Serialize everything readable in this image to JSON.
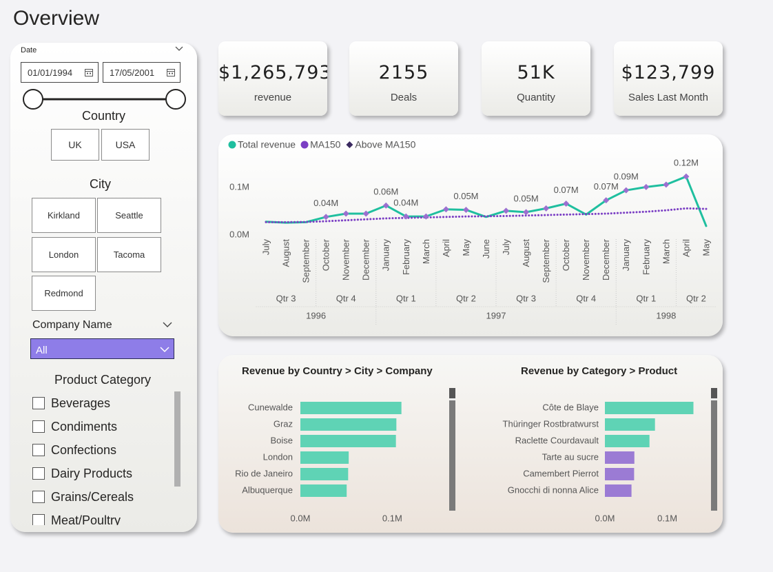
{
  "header": {
    "title": "Overview"
  },
  "filters": {
    "date": {
      "label": "Date",
      "start": "01/01/1994",
      "end": "17/05/2001"
    },
    "country": {
      "title": "Country",
      "options": [
        "UK",
        "USA"
      ]
    },
    "city": {
      "title": "City",
      "options": [
        "Kirkland",
        "Seattle",
        "London",
        "Tacoma",
        "Redmond"
      ]
    },
    "company": {
      "label": "Company Name",
      "value": "All"
    },
    "product_category": {
      "title": "Product Category",
      "options": [
        "Beverages",
        "Condiments",
        "Confections",
        "Dairy Products",
        "Grains/Cereals",
        "Meat/Poultry"
      ]
    }
  },
  "kpis": [
    {
      "value": "$1,265,793",
      "label": "revenue"
    },
    {
      "value": "2155",
      "label": "Deals"
    },
    {
      "value": "51K",
      "label": "Quantity"
    },
    {
      "value": "$123,799",
      "label": "Sales Last Month"
    }
  ],
  "chart_data": [
    {
      "type": "line",
      "categories": [
        "July",
        "August",
        "September",
        "October",
        "November",
        "December",
        "January",
        "February",
        "March",
        "April",
        "May",
        "June",
        "July",
        "August",
        "September",
        "October",
        "November",
        "December",
        "January",
        "February",
        "March",
        "April",
        "May"
      ],
      "quarters": [
        {
          "label": "Qtr 3",
          "months": 3
        },
        {
          "label": "Qtr 4",
          "months": 3
        },
        {
          "label": "Qtr 1",
          "months": 3
        },
        {
          "label": "Qtr 2",
          "months": 3
        },
        {
          "label": "Qtr 3",
          "months": 3
        },
        {
          "label": "Qtr 4",
          "months": 3
        },
        {
          "label": "Qtr 1",
          "months": 3
        },
        {
          "label": "Qtr 2",
          "months": 2
        }
      ],
      "years": [
        {
          "label": "1996",
          "quarters": 2
        },
        {
          "label": "1997",
          "quarters": 4
        },
        {
          "label": "1998",
          "quarters": 2
        }
      ],
      "series": [
        {
          "name": "Total revenue",
          "color": "#1fbf9f",
          "values": [
            28000,
            26000,
            27000,
            38000,
            45000,
            45000,
            62000,
            39000,
            39000,
            54000,
            53000,
            38000,
            51000,
            48000,
            56000,
            66000,
            43000,
            73000,
            94000,
            101000,
            106000,
            123000,
            19000
          ],
          "value_labels": [
            null,
            null,
            null,
            "0.04M",
            null,
            null,
            "0.06M",
            "0.04M",
            null,
            null,
            "0.05M",
            null,
            null,
            "0.05M",
            null,
            "0.07M",
            null,
            "0.07M",
            "0.09M",
            null,
            null,
            "0.12M",
            null
          ]
        },
        {
          "name": "MA150",
          "color": "#7b3fc4",
          "style": "dotted",
          "values": [
            27000,
            27000,
            27500,
            29000,
            31000,
            33000,
            35000,
            36000,
            37000,
            38000,
            39000,
            39500,
            40000,
            41000,
            42000,
            43000,
            44000,
            45000,
            47000,
            49000,
            52000,
            56000,
            55000
          ]
        },
        {
          "name": "Above MA150",
          "color": "#9b70d0",
          "marker": "diamond",
          "values": [
            null,
            null,
            null,
            38000,
            45000,
            45000,
            62000,
            39000,
            39000,
            54000,
            53000,
            null,
            51000,
            48000,
            56000,
            66000,
            null,
            73000,
            94000,
            101000,
            106000,
            123000,
            null
          ]
        }
      ],
      "ylim": [
        0,
        145000
      ],
      "yticks": [
        {
          "value": 0,
          "label": "0.0M"
        },
        {
          "value": 100000,
          "label": "0.1M"
        }
      ],
      "legend": "top-left"
    },
    {
      "type": "bar",
      "orientation": "horizontal",
      "title": "Revenue by Country > City > Company",
      "categories": [
        "Cunewalde",
        "Graz",
        "Boise",
        "London",
        "Rio de Janeiro",
        "Albuquerque"
      ],
      "values": [
        110000,
        104500,
        104000,
        52600,
        52000,
        50400
      ],
      "colors": [
        "#5fd3b5",
        "#5fd3b5",
        "#5fd3b5",
        "#5fd3b5",
        "#5fd3b5",
        "#5fd3b5"
      ],
      "xlim": [
        0,
        150000
      ],
      "xticks": [
        {
          "value": 0,
          "label": "0.0M"
        },
        {
          "value": 100000,
          "label": "0.1M"
        }
      ]
    },
    {
      "type": "bar",
      "orientation": "horizontal",
      "title": "Revenue by Category > Product",
      "categories": [
        "Côte de Blaye",
        "Thüringer Rostbratwurst",
        "Raclette Courdavault",
        "Tarte au sucre",
        "Camembert Pierrot",
        "Gnocchi di nonna Alice"
      ],
      "values": [
        141800,
        80200,
        71400,
        47200,
        46800,
        42600
      ],
      "colors": [
        "#5fd3b5",
        "#5fd3b5",
        "#5fd3b5",
        "#9b7bd4",
        "#9b7bd4",
        "#9b7bd4"
      ],
      "xlim": [
        0,
        160000
      ],
      "xticks": [
        {
          "value": 0,
          "label": "0.0M"
        },
        {
          "value": 100000,
          "label": "0.1M"
        }
      ]
    }
  ]
}
